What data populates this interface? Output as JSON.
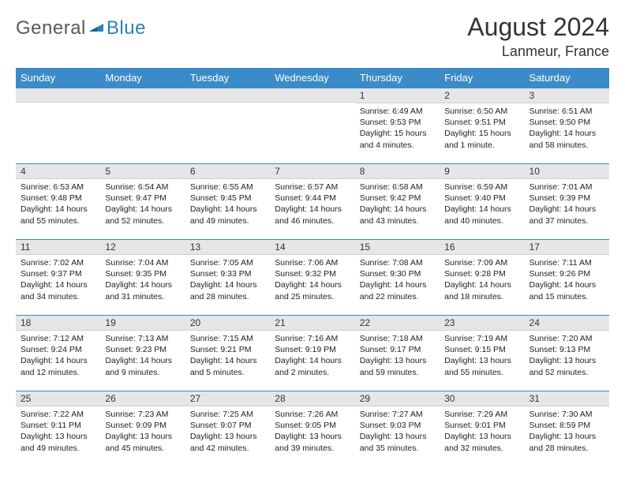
{
  "brand": {
    "general": "General",
    "blue": "Blue"
  },
  "title": "August 2024",
  "location": "Lanmeur, France",
  "colors": {
    "header_bg": "#3b8bc8",
    "header_text": "#ffffff",
    "daynum_bg": "#e6e6e6",
    "cell_border": "#3b8bc8",
    "logo_blue": "#2a7fba",
    "logo_gray": "#5a5a5a"
  },
  "weekdays": [
    "Sunday",
    "Monday",
    "Tuesday",
    "Wednesday",
    "Thursday",
    "Friday",
    "Saturday"
  ],
  "weeks": [
    [
      {
        "num": "",
        "sunrise": "",
        "sunset": "",
        "daylight": ""
      },
      {
        "num": "",
        "sunrise": "",
        "sunset": "",
        "daylight": ""
      },
      {
        "num": "",
        "sunrise": "",
        "sunset": "",
        "daylight": ""
      },
      {
        "num": "",
        "sunrise": "",
        "sunset": "",
        "daylight": ""
      },
      {
        "num": "1",
        "sunrise": "Sunrise: 6:49 AM",
        "sunset": "Sunset: 9:53 PM",
        "daylight": "Daylight: 15 hours and 4 minutes."
      },
      {
        "num": "2",
        "sunrise": "Sunrise: 6:50 AM",
        "sunset": "Sunset: 9:51 PM",
        "daylight": "Daylight: 15 hours and 1 minute."
      },
      {
        "num": "3",
        "sunrise": "Sunrise: 6:51 AM",
        "sunset": "Sunset: 9:50 PM",
        "daylight": "Daylight: 14 hours and 58 minutes."
      }
    ],
    [
      {
        "num": "4",
        "sunrise": "Sunrise: 6:53 AM",
        "sunset": "Sunset: 9:48 PM",
        "daylight": "Daylight: 14 hours and 55 minutes."
      },
      {
        "num": "5",
        "sunrise": "Sunrise: 6:54 AM",
        "sunset": "Sunset: 9:47 PM",
        "daylight": "Daylight: 14 hours and 52 minutes."
      },
      {
        "num": "6",
        "sunrise": "Sunrise: 6:55 AM",
        "sunset": "Sunset: 9:45 PM",
        "daylight": "Daylight: 14 hours and 49 minutes."
      },
      {
        "num": "7",
        "sunrise": "Sunrise: 6:57 AM",
        "sunset": "Sunset: 9:44 PM",
        "daylight": "Daylight: 14 hours and 46 minutes."
      },
      {
        "num": "8",
        "sunrise": "Sunrise: 6:58 AM",
        "sunset": "Sunset: 9:42 PM",
        "daylight": "Daylight: 14 hours and 43 minutes."
      },
      {
        "num": "9",
        "sunrise": "Sunrise: 6:59 AM",
        "sunset": "Sunset: 9:40 PM",
        "daylight": "Daylight: 14 hours and 40 minutes."
      },
      {
        "num": "10",
        "sunrise": "Sunrise: 7:01 AM",
        "sunset": "Sunset: 9:39 PM",
        "daylight": "Daylight: 14 hours and 37 minutes."
      }
    ],
    [
      {
        "num": "11",
        "sunrise": "Sunrise: 7:02 AM",
        "sunset": "Sunset: 9:37 PM",
        "daylight": "Daylight: 14 hours and 34 minutes."
      },
      {
        "num": "12",
        "sunrise": "Sunrise: 7:04 AM",
        "sunset": "Sunset: 9:35 PM",
        "daylight": "Daylight: 14 hours and 31 minutes."
      },
      {
        "num": "13",
        "sunrise": "Sunrise: 7:05 AM",
        "sunset": "Sunset: 9:33 PM",
        "daylight": "Daylight: 14 hours and 28 minutes."
      },
      {
        "num": "14",
        "sunrise": "Sunrise: 7:06 AM",
        "sunset": "Sunset: 9:32 PM",
        "daylight": "Daylight: 14 hours and 25 minutes."
      },
      {
        "num": "15",
        "sunrise": "Sunrise: 7:08 AM",
        "sunset": "Sunset: 9:30 PM",
        "daylight": "Daylight: 14 hours and 22 minutes."
      },
      {
        "num": "16",
        "sunrise": "Sunrise: 7:09 AM",
        "sunset": "Sunset: 9:28 PM",
        "daylight": "Daylight: 14 hours and 18 minutes."
      },
      {
        "num": "17",
        "sunrise": "Sunrise: 7:11 AM",
        "sunset": "Sunset: 9:26 PM",
        "daylight": "Daylight: 14 hours and 15 minutes."
      }
    ],
    [
      {
        "num": "18",
        "sunrise": "Sunrise: 7:12 AM",
        "sunset": "Sunset: 9:24 PM",
        "daylight": "Daylight: 14 hours and 12 minutes."
      },
      {
        "num": "19",
        "sunrise": "Sunrise: 7:13 AM",
        "sunset": "Sunset: 9:23 PM",
        "daylight": "Daylight: 14 hours and 9 minutes."
      },
      {
        "num": "20",
        "sunrise": "Sunrise: 7:15 AM",
        "sunset": "Sunset: 9:21 PM",
        "daylight": "Daylight: 14 hours and 5 minutes."
      },
      {
        "num": "21",
        "sunrise": "Sunrise: 7:16 AM",
        "sunset": "Sunset: 9:19 PM",
        "daylight": "Daylight: 14 hours and 2 minutes."
      },
      {
        "num": "22",
        "sunrise": "Sunrise: 7:18 AM",
        "sunset": "Sunset: 9:17 PM",
        "daylight": "Daylight: 13 hours and 59 minutes."
      },
      {
        "num": "23",
        "sunrise": "Sunrise: 7:19 AM",
        "sunset": "Sunset: 9:15 PM",
        "daylight": "Daylight: 13 hours and 55 minutes."
      },
      {
        "num": "24",
        "sunrise": "Sunrise: 7:20 AM",
        "sunset": "Sunset: 9:13 PM",
        "daylight": "Daylight: 13 hours and 52 minutes."
      }
    ],
    [
      {
        "num": "25",
        "sunrise": "Sunrise: 7:22 AM",
        "sunset": "Sunset: 9:11 PM",
        "daylight": "Daylight: 13 hours and 49 minutes."
      },
      {
        "num": "26",
        "sunrise": "Sunrise: 7:23 AM",
        "sunset": "Sunset: 9:09 PM",
        "daylight": "Daylight: 13 hours and 45 minutes."
      },
      {
        "num": "27",
        "sunrise": "Sunrise: 7:25 AM",
        "sunset": "Sunset: 9:07 PM",
        "daylight": "Daylight: 13 hours and 42 minutes."
      },
      {
        "num": "28",
        "sunrise": "Sunrise: 7:26 AM",
        "sunset": "Sunset: 9:05 PM",
        "daylight": "Daylight: 13 hours and 39 minutes."
      },
      {
        "num": "29",
        "sunrise": "Sunrise: 7:27 AM",
        "sunset": "Sunset: 9:03 PM",
        "daylight": "Daylight: 13 hours and 35 minutes."
      },
      {
        "num": "30",
        "sunrise": "Sunrise: 7:29 AM",
        "sunset": "Sunset: 9:01 PM",
        "daylight": "Daylight: 13 hours and 32 minutes."
      },
      {
        "num": "31",
        "sunrise": "Sunrise: 7:30 AM",
        "sunset": "Sunset: 8:59 PM",
        "daylight": "Daylight: 13 hours and 28 minutes."
      }
    ]
  ]
}
